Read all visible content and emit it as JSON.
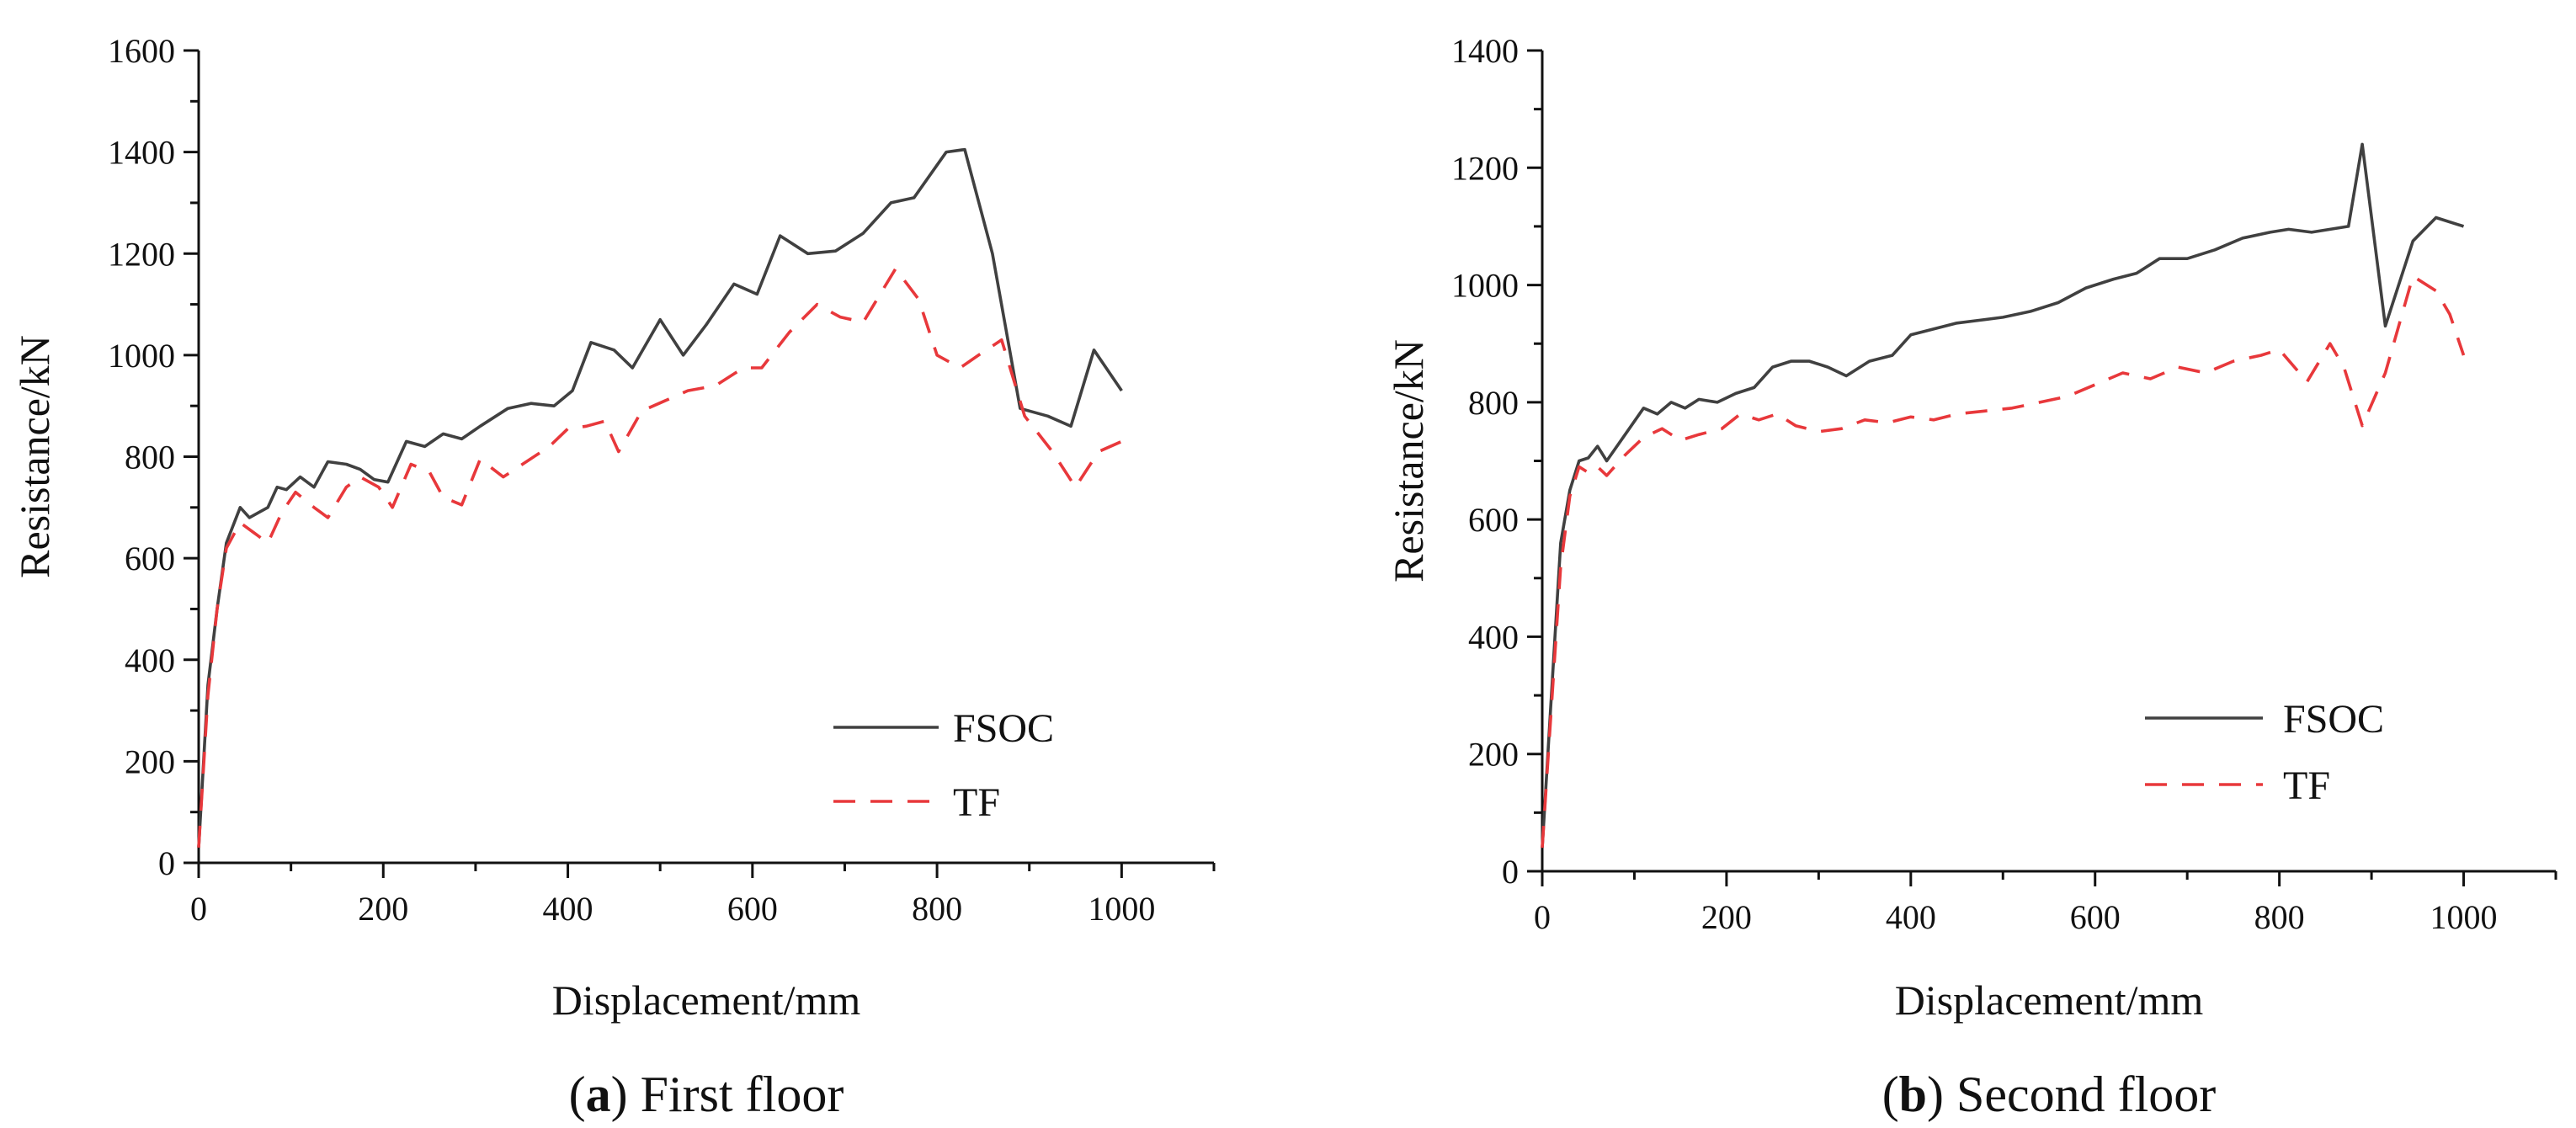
{
  "chart_data": [
    {
      "type": "line",
      "caption": {
        "open": "(",
        "letter": "a",
        "close": ")",
        "text": " First floor"
      },
      "xlabel": "Displacement/mm",
      "ylabel": "Resistance/kN",
      "xlim": [
        0,
        1100
      ],
      "ylim": [
        0,
        1600
      ],
      "xticks": [
        0,
        200,
        400,
        600,
        800,
        1000
      ],
      "yticks": [
        0,
        200,
        400,
        600,
        800,
        1000,
        1200,
        1400,
        1600
      ],
      "legend_position": "bottom-right",
      "series": [
        {
          "name": "FSOC",
          "color": "#404040",
          "style": "solid",
          "x": [
            0,
            10,
            20,
            30,
            45,
            55,
            65,
            75,
            85,
            95,
            110,
            125,
            140,
            160,
            175,
            190,
            205,
            225,
            245,
            265,
            285,
            305,
            335,
            360,
            385,
            405,
            425,
            450,
            470,
            500,
            525,
            550,
            580,
            605,
            630,
            660,
            690,
            720,
            750,
            775,
            810,
            830,
            860,
            890,
            920,
            945,
            970,
            1000
          ],
          "y": [
            30,
            350,
            500,
            630,
            700,
            680,
            690,
            700,
            740,
            735,
            760,
            740,
            790,
            785,
            775,
            755,
            750,
            830,
            820,
            845,
            835,
            860,
            895,
            905,
            900,
            930,
            1025,
            1010,
            975,
            1070,
            1000,
            1060,
            1140,
            1120,
            1235,
            1200,
            1205,
            1240,
            1300,
            1310,
            1400,
            1405,
            1200,
            895,
            880,
            860,
            1010,
            930
          ]
        },
        {
          "name": "TF",
          "color": "#e8383b",
          "style": "dashed",
          "x": [
            0,
            10,
            20,
            30,
            45,
            60,
            75,
            90,
            105,
            125,
            140,
            160,
            175,
            195,
            210,
            230,
            250,
            265,
            285,
            305,
            330,
            355,
            380,
            400,
            420,
            440,
            455,
            480,
            505,
            530,
            560,
            590,
            610,
            640,
            670,
            695,
            720,
            755,
            780,
            800,
            825,
            845,
            870,
            895,
            925,
            950,
            975,
            1000
          ],
          "y": [
            30,
            330,
            500,
            620,
            670,
            650,
            630,
            690,
            730,
            700,
            680,
            740,
            760,
            740,
            700,
            785,
            770,
            720,
            705,
            795,
            760,
            790,
            820,
            855,
            860,
            870,
            810,
            890,
            910,
            930,
            940,
            975,
            975,
            1045,
            1100,
            1075,
            1065,
            1170,
            1110,
            1000,
            975,
            1000,
            1030,
            880,
            810,
            740,
            810,
            830
          ]
        }
      ]
    },
    {
      "type": "line",
      "caption": {
        "open": "(",
        "letter": "b",
        "close": ")",
        "text": " Second floor"
      },
      "xlabel": "Displacement/mm",
      "ylabel": "Resistance/kN",
      "xlim": [
        0,
        1100
      ],
      "ylim": [
        0,
        1400
      ],
      "xticks": [
        0,
        200,
        400,
        600,
        800,
        1000
      ],
      "yticks": [
        0,
        200,
        400,
        600,
        800,
        1000,
        1200,
        1400
      ],
      "legend_position": "bottom-right",
      "series": [
        {
          "name": "FSOC",
          "color": "#404040",
          "style": "solid",
          "x": [
            0,
            10,
            20,
            30,
            40,
            50,
            60,
            70,
            90,
            110,
            125,
            140,
            155,
            170,
            190,
            210,
            230,
            250,
            270,
            290,
            310,
            330,
            355,
            380,
            400,
            425,
            450,
            475,
            500,
            530,
            560,
            590,
            620,
            645,
            670,
            700,
            730,
            760,
            790,
            810,
            835,
            855,
            875,
            890,
            915,
            945,
            970,
            1000
          ],
          "y": [
            40,
            300,
            560,
            650,
            700,
            705,
            725,
            700,
            745,
            790,
            780,
            800,
            790,
            805,
            800,
            815,
            825,
            860,
            870,
            870,
            860,
            845,
            870,
            880,
            915,
            925,
            935,
            940,
            945,
            955,
            970,
            995,
            1010,
            1020,
            1045,
            1045,
            1060,
            1080,
            1090,
            1095,
            1090,
            1095,
            1100,
            1240,
            930,
            1075,
            1115,
            1100
          ]
        },
        {
          "name": "TF",
          "color": "#e8383b",
          "style": "dashed",
          "x": [
            0,
            10,
            20,
            30,
            40,
            50,
            60,
            70,
            90,
            110,
            130,
            150,
            170,
            195,
            215,
            235,
            255,
            275,
            300,
            325,
            350,
            375,
            400,
            425,
            450,
            480,
            510,
            540,
            570,
            600,
            630,
            660,
            690,
            720,
            750,
            780,
            800,
            830,
            855,
            870,
            890,
            915,
            945,
            970,
            985,
            1000
          ],
          "y": [
            40,
            280,
            520,
            640,
            690,
            680,
            690,
            675,
            710,
            740,
            755,
            735,
            745,
            755,
            780,
            770,
            780,
            760,
            750,
            755,
            770,
            765,
            775,
            770,
            780,
            785,
            790,
            800,
            810,
            830,
            850,
            840,
            860,
            850,
            870,
            880,
            890,
            835,
            900,
            860,
            760,
            850,
            1015,
            990,
            950,
            880
          ]
        }
      ]
    }
  ]
}
